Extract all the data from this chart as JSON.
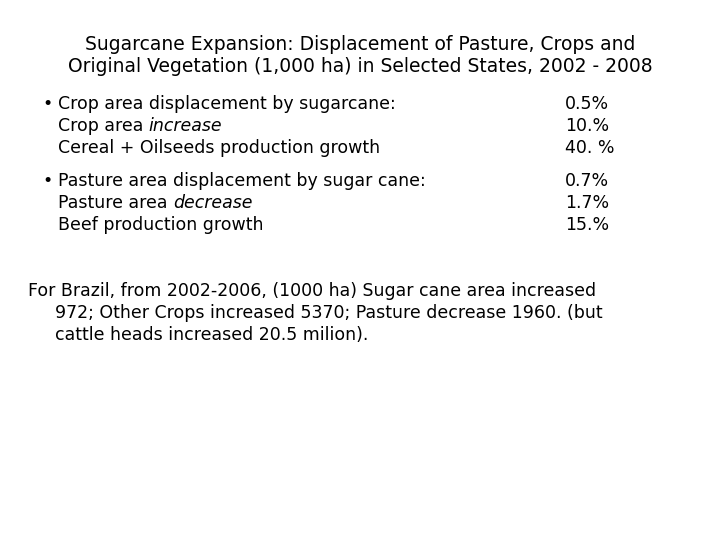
{
  "title_line1": "Sugarcane Expansion: Displacement of Pasture, Crops and",
  "title_line2": "Original Vegetation (1,000 ha) in Selected States, 2002 - 2008",
  "bullet1_line1_left": "Crop area displacement by sugarcane:",
  "bullet1_line1_right": "0.5%",
  "bullet1_line2_normal": "Crop area ",
  "bullet1_line2_italic": "increase",
  "bullet1_line2_right": "10.%",
  "bullet1_line3_left": "Cereal + Oilseeds production growth",
  "bullet1_line3_right": "40. %",
  "bullet2_line1_left": "Pasture area displacement by sugar cane:",
  "bullet2_line1_right": "0.7%",
  "bullet2_line2_normal": "Pasture area ",
  "bullet2_line2_italic": "decrease",
  "bullet2_line2_right": "1.7%",
  "bullet2_line3_left": "Beef production growth",
  "bullet2_line3_right": "15.%",
  "footer_line1": "For Brazil, from 2002-2006, (1000 ha) Sugar cane area increased",
  "footer_line2": "972; Other Crops increased 5370; Pasture decrease 1960. (but",
  "footer_line3": "cattle heads increased 20.5 milion).",
  "bg_color": "#ffffff",
  "text_color": "#000000",
  "title_fontsize": 13.5,
  "body_fontsize": 12.5,
  "footer_fontsize": 12.5,
  "bullet_char": "•",
  "font_family": "DejaVu Sans"
}
